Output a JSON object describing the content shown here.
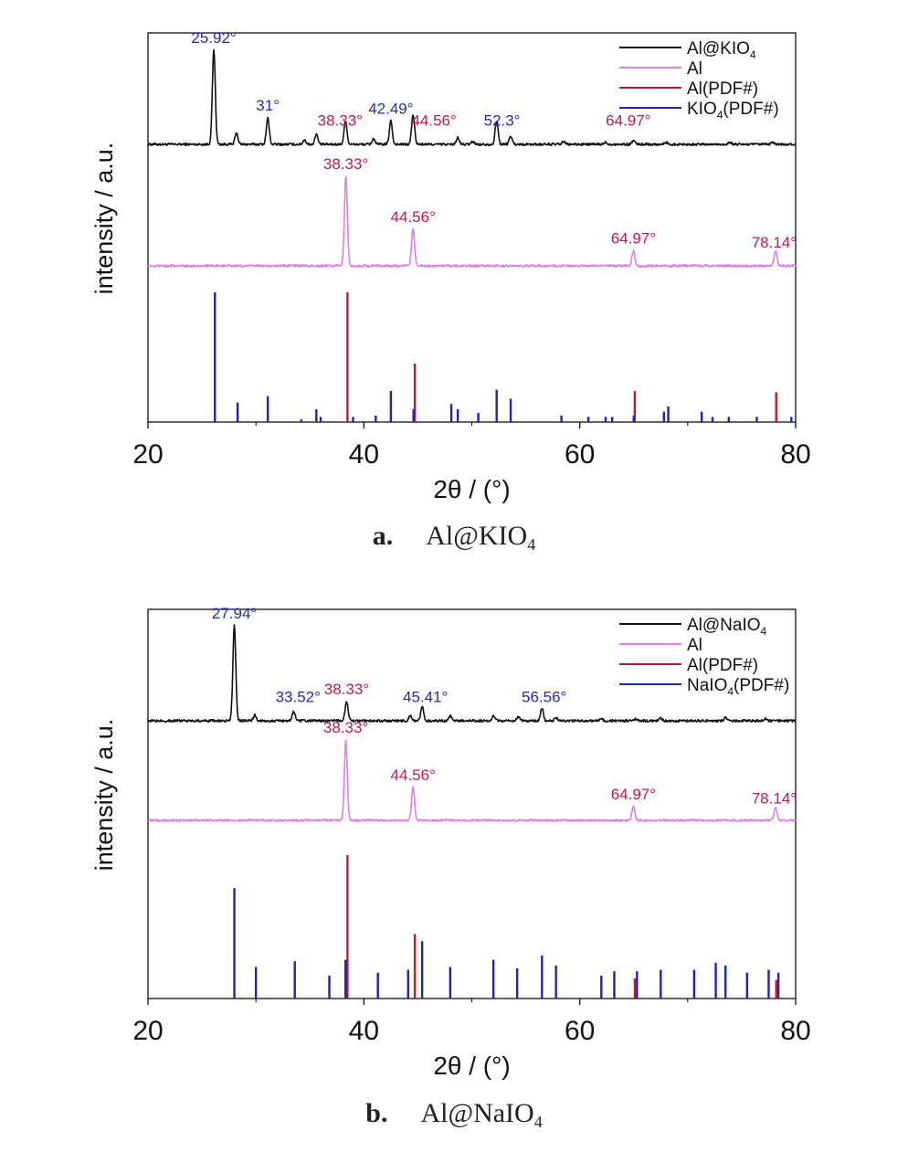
{
  "colors": {
    "black": "#111111",
    "pink": "#dd7fe3",
    "red": "#c9152b",
    "blue": "#1f22b4",
    "label_blue": "#1f2fb4",
    "label_red": "#c11a4a"
  },
  "axis_common": {
    "xlabel": "2θ / (°)",
    "ylabel": "intensity / a.u.",
    "xticks": [
      "20",
      "40",
      "60",
      "80"
    ]
  },
  "chart_data": [
    {
      "type": "line",
      "caption_tag": "a.",
      "caption_main": "Al@KIO",
      "caption_sub": "4",
      "xlabel": "2θ / (°)",
      "ylabel": "intensity / a.u.",
      "xlim": [
        20,
        80
      ],
      "legend_position": "top-right",
      "legend": [
        {
          "main": "Al@KIO",
          "sub": "4",
          "tail": "",
          "color": "#111111"
        },
        {
          "main": "Al",
          "sub": "",
          "tail": "",
          "color": "#dd7fe3"
        },
        {
          "main": "Al(PDF#)",
          "sub": "",
          "tail": "",
          "color": "#c9152b"
        },
        {
          "main": "KIO",
          "sub": "4",
          "tail": "(PDF#)",
          "color": "#1f22b4"
        }
      ],
      "series": [
        {
          "name": "Al@KIO4",
          "kind": "pattern",
          "color": "#111111",
          "peaks": [
            [
              26.1,
              1.0
            ],
            [
              28.2,
              0.12
            ],
            [
              31.1,
              0.28
            ],
            [
              34.5,
              0.05
            ],
            [
              35.6,
              0.11
            ],
            [
              38.3,
              0.25
            ],
            [
              40.9,
              0.06
            ],
            [
              42.5,
              0.25
            ],
            [
              44.56,
              0.31
            ],
            [
              48.7,
              0.07
            ],
            [
              50.1,
              0.03
            ],
            [
              52.3,
              0.25
            ],
            [
              53.6,
              0.09
            ],
            [
              58.5,
              0.03
            ],
            [
              62.4,
              0.02
            ],
            [
              64.97,
              0.04
            ],
            [
              68.0,
              0.02
            ],
            [
              73.9,
              0.02
            ],
            [
              77.9,
              0.02
            ]
          ]
        },
        {
          "name": "Al",
          "kind": "pattern",
          "color": "#dd7fe3",
          "peaks": [
            [
              38.33,
              1.0
            ],
            [
              44.56,
              0.41
            ],
            [
              64.97,
              0.17
            ],
            [
              78.14,
              0.17
            ]
          ]
        },
        {
          "name": "Al(PDF#)",
          "kind": "sticks",
          "color": "#c9152b",
          "sticks": [
            [
              38.48,
              1.0
            ],
            [
              44.72,
              0.45
            ],
            [
              65.1,
              0.24
            ],
            [
              78.2,
              0.23
            ]
          ]
        },
        {
          "name": "KIO4(PDF#)",
          "kind": "sticks",
          "color": "#1f22b4",
          "sticks": [
            [
              26.2,
              1.0
            ],
            [
              28.3,
              0.15
            ],
            [
              31.1,
              0.2
            ],
            [
              34.2,
              0.02
            ],
            [
              35.6,
              0.1
            ],
            [
              36.0,
              0.04
            ],
            [
              39.0,
              0.04
            ],
            [
              41.1,
              0.05
            ],
            [
              42.5,
              0.24
            ],
            [
              44.6,
              0.1
            ],
            [
              48.1,
              0.14
            ],
            [
              48.7,
              0.1
            ],
            [
              50.6,
              0.07
            ],
            [
              52.3,
              0.25
            ],
            [
              53.6,
              0.18
            ],
            [
              58.3,
              0.05
            ],
            [
              60.8,
              0.04
            ],
            [
              62.4,
              0.04
            ],
            [
              63.0,
              0.04
            ],
            [
              65.0,
              0.05
            ],
            [
              67.8,
              0.08
            ],
            [
              68.2,
              0.12
            ],
            [
              71.3,
              0.08
            ],
            [
              72.3,
              0.04
            ],
            [
              73.8,
              0.04
            ],
            [
              76.4,
              0.04
            ],
            [
              79.6,
              0.04
            ]
          ]
        }
      ],
      "annotations": [
        {
          "text": "25.92°",
          "x": 26.1,
          "series": 0,
          "color": "#1f2fb4"
        },
        {
          "text": "31°",
          "x": 31.1,
          "series": 0,
          "color": "#1f2fb4"
        },
        {
          "text": "38.33°",
          "x": 37.8,
          "series": 0,
          "color": "#c11a4a"
        },
        {
          "text": "42.49°",
          "x": 42.5,
          "series": 0,
          "color": "#1f2fb4"
        },
        {
          "text": "44.56°",
          "x": 46.5,
          "series": 0,
          "color": "#c11a4a"
        },
        {
          "text": "52.3°",
          "x": 52.8,
          "series": 0,
          "color": "#1f2fb4"
        },
        {
          "text": "64.97°",
          "x": 64.5,
          "series": 0,
          "color": "#c11a4a"
        },
        {
          "text": "38.33°",
          "x": 38.33,
          "series": 1,
          "color": "#c11a4a"
        },
        {
          "text": "44.56°",
          "x": 44.56,
          "series": 1,
          "color": "#c11a4a"
        },
        {
          "text": "64.97°",
          "x": 64.97,
          "series": 1,
          "color": "#c11a4a"
        },
        {
          "text": "78.14°",
          "x": 78.0,
          "series": 1,
          "color": "#c11a4a"
        }
      ]
    },
    {
      "type": "line",
      "caption_tag": "b.",
      "caption_main": "Al@NaIO",
      "caption_sub": "4",
      "xlabel": "2θ / (°)",
      "ylabel": "intensity / a.u.",
      "xlim": [
        20,
        80
      ],
      "legend_position": "top-right",
      "legend": [
        {
          "main": "Al@NaIO",
          "sub": "4",
          "tail": "",
          "color": "#111111"
        },
        {
          "main": "Al",
          "sub": "",
          "tail": "",
          "color": "#dd7fe3"
        },
        {
          "main": "Al(PDF#)",
          "sub": "",
          "tail": "",
          "color": "#c9152b"
        },
        {
          "main": "NaIO",
          "sub": "4",
          "tail": "(PDF#)",
          "color": "#1f22b4"
        }
      ],
      "series": [
        {
          "name": "Al@NaIO4",
          "kind": "pattern",
          "color": "#111111",
          "peaks": [
            [
              28.0,
              1.0
            ],
            [
              29.9,
              0.06
            ],
            [
              33.5,
              0.1
            ],
            [
              38.4,
              0.2
            ],
            [
              44.3,
              0.05
            ],
            [
              45.4,
              0.15
            ],
            [
              48.0,
              0.05
            ],
            [
              52.0,
              0.05
            ],
            [
              54.3,
              0.04
            ],
            [
              56.5,
              0.13
            ],
            [
              57.8,
              0.03
            ],
            [
              62.0,
              0.02
            ],
            [
              65.2,
              0.02
            ],
            [
              67.5,
              0.03
            ],
            [
              73.5,
              0.03
            ],
            [
              77.2,
              0.02
            ]
          ]
        },
        {
          "name": "Al",
          "kind": "pattern",
          "color": "#dd7fe3",
          "peaks": [
            [
              38.33,
              1.0
            ],
            [
              44.56,
              0.41
            ],
            [
              64.97,
              0.17
            ],
            [
              78.14,
              0.17
            ]
          ]
        },
        {
          "name": "Al(PDF#)",
          "kind": "sticks",
          "color": "#c9152b",
          "sticks": [
            [
              38.48,
              1.0
            ],
            [
              44.72,
              0.45
            ],
            [
              65.1,
              0.14
            ],
            [
              78.2,
              0.13
            ]
          ]
        },
        {
          "name": "NaIO4(PDF#)",
          "kind": "sticks",
          "color": "#1f22b4",
          "sticks": [
            [
              28.0,
              0.77
            ],
            [
              30.0,
              0.22
            ],
            [
              33.6,
              0.26
            ],
            [
              36.8,
              0.16
            ],
            [
              38.3,
              0.27
            ],
            [
              41.3,
              0.18
            ],
            [
              44.1,
              0.2
            ],
            [
              45.4,
              0.4
            ],
            [
              48.0,
              0.22
            ],
            [
              52.0,
              0.27
            ],
            [
              54.2,
              0.21
            ],
            [
              56.5,
              0.3
            ],
            [
              57.8,
              0.23
            ],
            [
              62.0,
              0.16
            ],
            [
              63.2,
              0.19
            ],
            [
              65.3,
              0.19
            ],
            [
              67.5,
              0.2
            ],
            [
              70.6,
              0.2
            ],
            [
              72.6,
              0.25
            ],
            [
              73.5,
              0.23
            ],
            [
              75.5,
              0.18
            ],
            [
              77.5,
              0.2
            ],
            [
              78.4,
              0.18
            ]
          ]
        }
      ],
      "annotations": [
        {
          "text": "27.94°",
          "x": 28.0,
          "series": 0,
          "color": "#1f2fb4"
        },
        {
          "text": "33.52°",
          "x": 33.9,
          "series": 0,
          "color": "#1f2fb4"
        },
        {
          "text": "38.33°",
          "x": 38.4,
          "series": 0,
          "color": "#c11a4a"
        },
        {
          "text": "45.41°",
          "x": 45.7,
          "series": 0,
          "color": "#1f2fb4"
        },
        {
          "text": "56.56°",
          "x": 56.7,
          "series": 0,
          "color": "#1f2fb4"
        },
        {
          "text": "38.33°",
          "x": 38.33,
          "series": 1,
          "color": "#c11a4a"
        },
        {
          "text": "44.56°",
          "x": 44.56,
          "series": 1,
          "color": "#c11a4a"
        },
        {
          "text": "64.97°",
          "x": 64.97,
          "series": 1,
          "color": "#c11a4a"
        },
        {
          "text": "78.14°",
          "x": 78.0,
          "series": 1,
          "color": "#c11a4a"
        }
      ]
    }
  ]
}
